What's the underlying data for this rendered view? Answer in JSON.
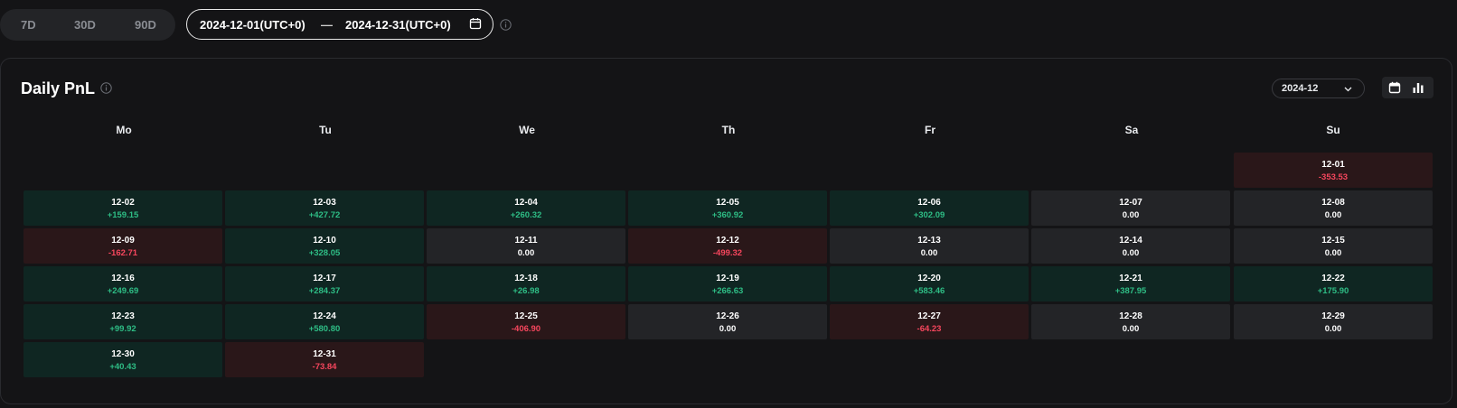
{
  "range_tabs": [
    "7D",
    "30D",
    "90D"
  ],
  "date_range": {
    "start": "2024-12-01(UTC+0)",
    "separator": "—",
    "end": "2024-12-31(UTC+0)"
  },
  "panel": {
    "title": "Daily PnL",
    "month": "2024-12",
    "weekdays": [
      "Mo",
      "Tu",
      "We",
      "Th",
      "Fr",
      "Sa",
      "Su"
    ]
  },
  "days": [
    {
      "date": "12-01",
      "value": "-353.53",
      "status": "neg"
    },
    {
      "date": "12-02",
      "value": "+159.15",
      "status": "pos"
    },
    {
      "date": "12-03",
      "value": "+427.72",
      "status": "pos"
    },
    {
      "date": "12-04",
      "value": "+260.32",
      "status": "pos"
    },
    {
      "date": "12-05",
      "value": "+360.92",
      "status": "pos"
    },
    {
      "date": "12-06",
      "value": "+302.09",
      "status": "pos"
    },
    {
      "date": "12-07",
      "value": "0.00",
      "status": "zero"
    },
    {
      "date": "12-08",
      "value": "0.00",
      "status": "zero"
    },
    {
      "date": "12-09",
      "value": "-162.71",
      "status": "neg"
    },
    {
      "date": "12-10",
      "value": "+328.05",
      "status": "pos"
    },
    {
      "date": "12-11",
      "value": "0.00",
      "status": "zero"
    },
    {
      "date": "12-12",
      "value": "-499.32",
      "status": "neg"
    },
    {
      "date": "12-13",
      "value": "0.00",
      "status": "zero"
    },
    {
      "date": "12-14",
      "value": "0.00",
      "status": "zero"
    },
    {
      "date": "12-15",
      "value": "0.00",
      "status": "zero"
    },
    {
      "date": "12-16",
      "value": "+249.69",
      "status": "pos"
    },
    {
      "date": "12-17",
      "value": "+284.37",
      "status": "pos"
    },
    {
      "date": "12-18",
      "value": "+26.98",
      "status": "pos"
    },
    {
      "date": "12-19",
      "value": "+266.63",
      "status": "pos"
    },
    {
      "date": "12-20",
      "value": "+583.46",
      "status": "pos"
    },
    {
      "date": "12-21",
      "value": "+387.95",
      "status": "pos"
    },
    {
      "date": "12-22",
      "value": "+175.90",
      "status": "pos"
    },
    {
      "date": "12-23",
      "value": "+99.92",
      "status": "pos"
    },
    {
      "date": "12-24",
      "value": "+580.80",
      "status": "pos"
    },
    {
      "date": "12-25",
      "value": "-406.90",
      "status": "neg"
    },
    {
      "date": "12-26",
      "value": "0.00",
      "status": "zero"
    },
    {
      "date": "12-27",
      "value": "-64.23",
      "status": "neg"
    },
    {
      "date": "12-28",
      "value": "0.00",
      "status": "zero"
    },
    {
      "date": "12-29",
      "value": "0.00",
      "status": "zero"
    },
    {
      "date": "12-30",
      "value": "+40.43",
      "status": "pos"
    },
    {
      "date": "12-31",
      "value": "-73.84",
      "status": "neg"
    }
  ],
  "colors": {
    "positive": "#2ebd85",
    "negative": "#f6465d",
    "positive_bg": "#0f2622",
    "negative_bg": "#2a1719",
    "neutral_bg": "#232427"
  }
}
